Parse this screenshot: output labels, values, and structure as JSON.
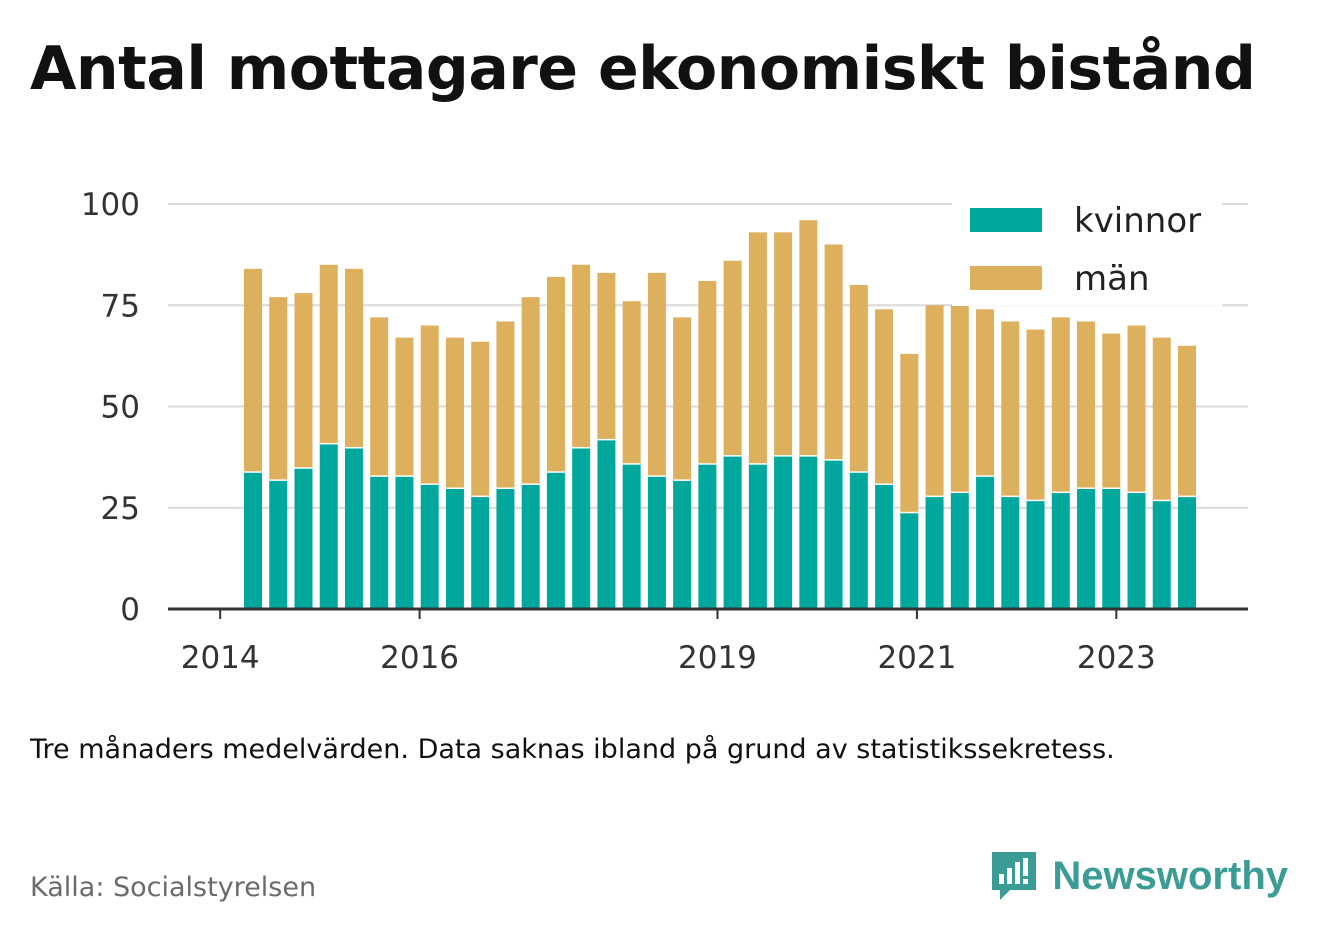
{
  "title": "Antal mottagare ekonomiskt bistånd",
  "note": "Tre månaders medelvärden. Data saknas ibland på grund av statistikssekretess.",
  "source": "Källa: Socialstyrelsen",
  "brand": "Newsworthy",
  "colors": {
    "kvinnor": "#00a79d",
    "man": "#dcb05c",
    "grid": "#d9d9d9",
    "axis": "#333333",
    "brand": "#3b9c95"
  },
  "chart_data": {
    "type": "bar",
    "stacked": true,
    "ylim": [
      0,
      100
    ],
    "yticks": [
      0,
      25,
      50,
      75,
      100
    ],
    "xticks": [
      "2014",
      "2016",
      "2019",
      "2021",
      "2023"
    ],
    "legend_position": "top-right",
    "grid": true,
    "series": [
      {
        "name": "kvinnor",
        "values": [
          34,
          32,
          35,
          41,
          40,
          33,
          33,
          31,
          30,
          28,
          30,
          31,
          34,
          40,
          42,
          36,
          33,
          32,
          36,
          38,
          36,
          38,
          38,
          37,
          34,
          31,
          24,
          28,
          29,
          33,
          28,
          27,
          29,
          30,
          30,
          29,
          27,
          28
        ]
      },
      {
        "name": "män",
        "values": [
          50,
          45,
          43,
          44,
          44,
          39,
          34,
          39,
          37,
          38,
          41,
          46,
          48,
          45,
          41,
          40,
          50,
          40,
          45,
          48,
          57,
          55,
          58,
          53,
          46,
          43,
          39,
          47,
          46,
          41,
          43,
          42,
          43,
          41,
          38,
          41,
          40,
          37
        ]
      }
    ]
  }
}
